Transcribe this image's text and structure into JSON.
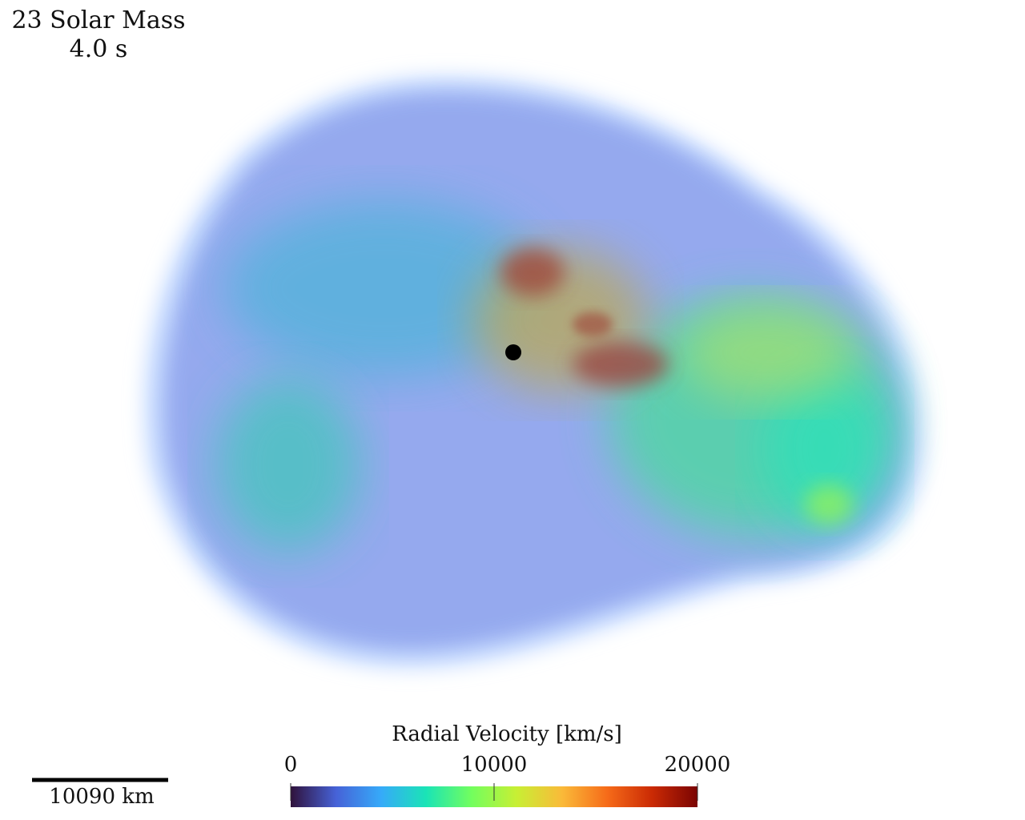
{
  "title": "23 Solar Mass",
  "time": "4.0 s",
  "scale_bar": {
    "label": "10090 km"
  },
  "colorbar": {
    "title": "Radial Velocity [km/s]",
    "lim": [
      0,
      20000
    ],
    "ticks": [
      0,
      10000,
      20000
    ],
    "colormap": [
      "#30123b",
      "#4662d7",
      "#36aaf9",
      "#1ae4b6",
      "#72fe5e",
      "#c8ef34",
      "#faba39",
      "#f66b19",
      "#ca2a04",
      "#7a0403"
    ]
  }
}
